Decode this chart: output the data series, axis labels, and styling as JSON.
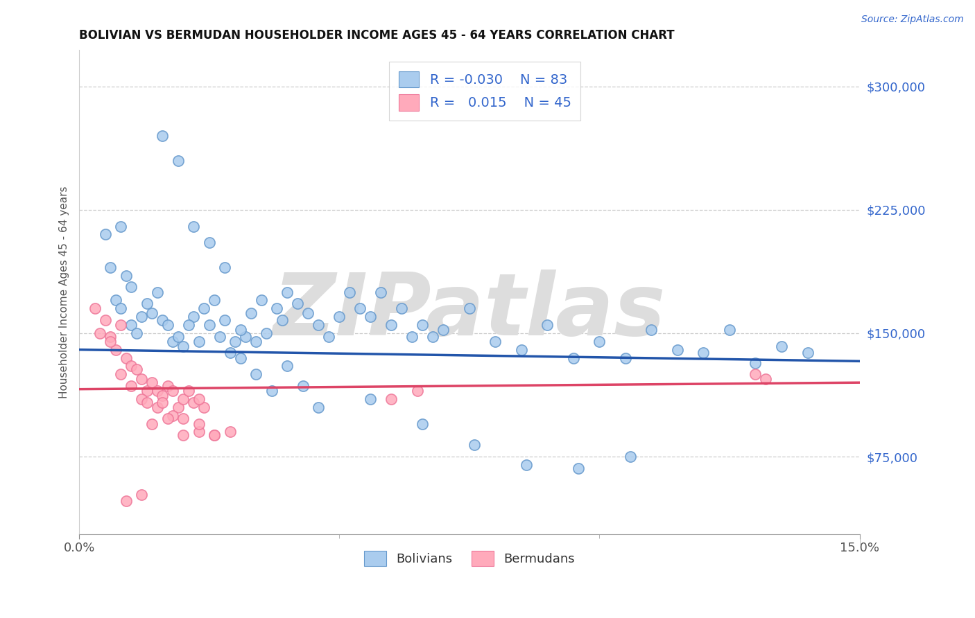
{
  "title": "BOLIVIAN VS BERMUDAN HOUSEHOLDER INCOME AGES 45 - 64 YEARS CORRELATION CHART",
  "source": "Source: ZipAtlas.com",
  "ylabel": "Householder Income Ages 45 - 64 years",
  "xlim": [
    0.0,
    0.15
  ],
  "ylim_low": 28000,
  "ylim_high": 322000,
  "yticks": [
    75000,
    150000,
    225000,
    300000
  ],
  "ytick_labels": [
    "$75,000",
    "$150,000",
    "$225,000",
    "$300,000"
  ],
  "xtick_left_label": "0.0%",
  "xtick_right_label": "15.0%",
  "blue_scatter_fc": "#aaccee",
  "blue_scatter_ec": "#6699cc",
  "pink_scatter_fc": "#ffaabb",
  "pink_scatter_ec": "#ee7799",
  "blue_line_color": "#2255aa",
  "pink_line_color": "#dd4466",
  "blue_text_color": "#3366cc",
  "watermark_text": "ZIPatlas",
  "watermark_color": "#dddddd",
  "legend_line1": "R = -0.030   N = 83",
  "legend_line2": "R =   0.015   N = 45",
  "blue_line_y0": 140000,
  "blue_line_y1": 133000,
  "pink_line_y0": 116000,
  "pink_line_y1": 120000,
  "bolivians_x": [
    0.008,
    0.005,
    0.006,
    0.009,
    0.01,
    0.007,
    0.008,
    0.012,
    0.015,
    0.013,
    0.01,
    0.011,
    0.014,
    0.016,
    0.018,
    0.017,
    0.019,
    0.02,
    0.022,
    0.021,
    0.023,
    0.025,
    0.024,
    0.026,
    0.028,
    0.027,
    0.03,
    0.029,
    0.032,
    0.031,
    0.033,
    0.035,
    0.034,
    0.036,
    0.038,
    0.04,
    0.039,
    0.042,
    0.044,
    0.046,
    0.048,
    0.05,
    0.052,
    0.054,
    0.056,
    0.058,
    0.06,
    0.062,
    0.064,
    0.066,
    0.068,
    0.07,
    0.075,
    0.08,
    0.085,
    0.09,
    0.095,
    0.1,
    0.105,
    0.11,
    0.115,
    0.12,
    0.125,
    0.13,
    0.135,
    0.14,
    0.016,
    0.019,
    0.022,
    0.025,
    0.028,
    0.031,
    0.034,
    0.037,
    0.04,
    0.043,
    0.046,
    0.056,
    0.066,
    0.076,
    0.086,
    0.096,
    0.106
  ],
  "bolivians_y": [
    215000,
    210000,
    190000,
    185000,
    178000,
    170000,
    165000,
    160000,
    175000,
    168000,
    155000,
    150000,
    162000,
    158000,
    145000,
    155000,
    148000,
    142000,
    160000,
    155000,
    145000,
    155000,
    165000,
    170000,
    158000,
    148000,
    145000,
    138000,
    148000,
    152000,
    162000,
    170000,
    145000,
    150000,
    165000,
    175000,
    158000,
    168000,
    162000,
    155000,
    148000,
    160000,
    175000,
    165000,
    160000,
    175000,
    155000,
    165000,
    148000,
    155000,
    148000,
    152000,
    165000,
    145000,
    140000,
    155000,
    135000,
    145000,
    135000,
    152000,
    140000,
    138000,
    152000,
    132000,
    142000,
    138000,
    270000,
    255000,
    215000,
    205000,
    190000,
    135000,
    125000,
    115000,
    130000,
    118000,
    105000,
    110000,
    95000,
    82000,
    70000,
    68000,
    75000
  ],
  "bermudans_x": [
    0.003,
    0.005,
    0.004,
    0.006,
    0.007,
    0.008,
    0.006,
    0.009,
    0.01,
    0.008,
    0.011,
    0.01,
    0.012,
    0.013,
    0.012,
    0.014,
    0.015,
    0.013,
    0.016,
    0.015,
    0.017,
    0.016,
    0.018,
    0.019,
    0.02,
    0.018,
    0.022,
    0.021,
    0.024,
    0.023,
    0.014,
    0.017,
    0.02,
    0.023,
    0.026,
    0.029,
    0.02,
    0.023,
    0.026,
    0.13,
    0.132,
    0.06,
    0.065,
    0.009,
    0.012
  ],
  "bermudans_y": [
    165000,
    158000,
    150000,
    148000,
    140000,
    155000,
    145000,
    135000,
    130000,
    125000,
    128000,
    118000,
    122000,
    115000,
    110000,
    120000,
    115000,
    108000,
    112000,
    105000,
    118000,
    108000,
    115000,
    105000,
    110000,
    100000,
    108000,
    115000,
    105000,
    110000,
    95000,
    98000,
    88000,
    90000,
    88000,
    90000,
    98000,
    95000,
    88000,
    125000,
    122000,
    110000,
    115000,
    48000,
    52000
  ]
}
